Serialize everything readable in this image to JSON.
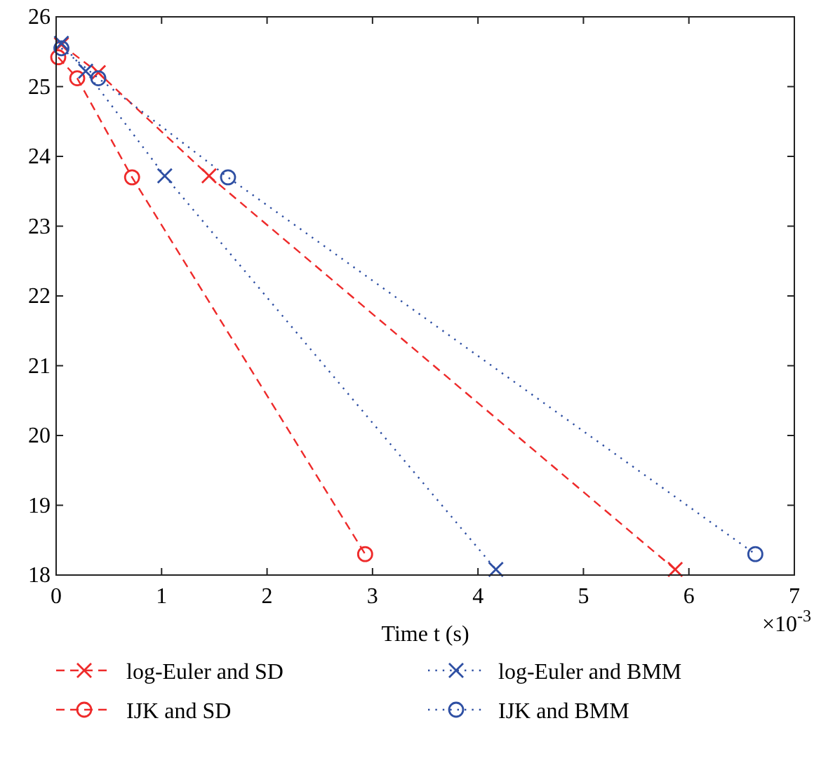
{
  "chart_data": {
    "type": "line",
    "xlabel": "Time t (s)",
    "annotations": [
      "×10$^{-3}$"
    ],
    "xlim": [
      0,
      7
    ],
    "xticks": [
      0,
      1,
      2,
      3,
      4,
      5,
      6,
      7
    ],
    "ylim": [
      18,
      26
    ],
    "yticks": [
      18,
      19,
      20,
      21,
      22,
      23,
      24,
      25,
      26
    ],
    "grid": false,
    "legend": "bottom",
    "series": [
      {
        "name": "log-Euler and SD",
        "color": "#ee2a2a",
        "marker": "cross",
        "line_style": "dashed",
        "x": [
          0.05,
          0.4,
          1.45,
          5.87
        ],
        "values": [
          25.6,
          25.2,
          23.72,
          18.08
        ]
      },
      {
        "name": "IJK and SD",
        "color": "#ee2a2a",
        "marker": "circle",
        "line_style": "dashed",
        "x": [
          0.02,
          0.2,
          0.72,
          2.93
        ],
        "values": [
          25.42,
          25.12,
          23.7,
          18.3
        ]
      },
      {
        "name": "log-Euler and BMM",
        "color": "#2e4fa3",
        "marker": "cross",
        "line_style": "dotted",
        "x": [
          0.05,
          0.28,
          1.03,
          4.17
        ],
        "values": [
          25.62,
          25.22,
          23.72,
          18.08
        ]
      },
      {
        "name": "IJK and BMM",
        "color": "#2e4fa3",
        "marker": "circle",
        "line_style": "dotted",
        "x": [
          0.05,
          0.4,
          1.63,
          6.63
        ],
        "values": [
          25.55,
          25.12,
          23.7,
          18.3
        ]
      }
    ]
  }
}
